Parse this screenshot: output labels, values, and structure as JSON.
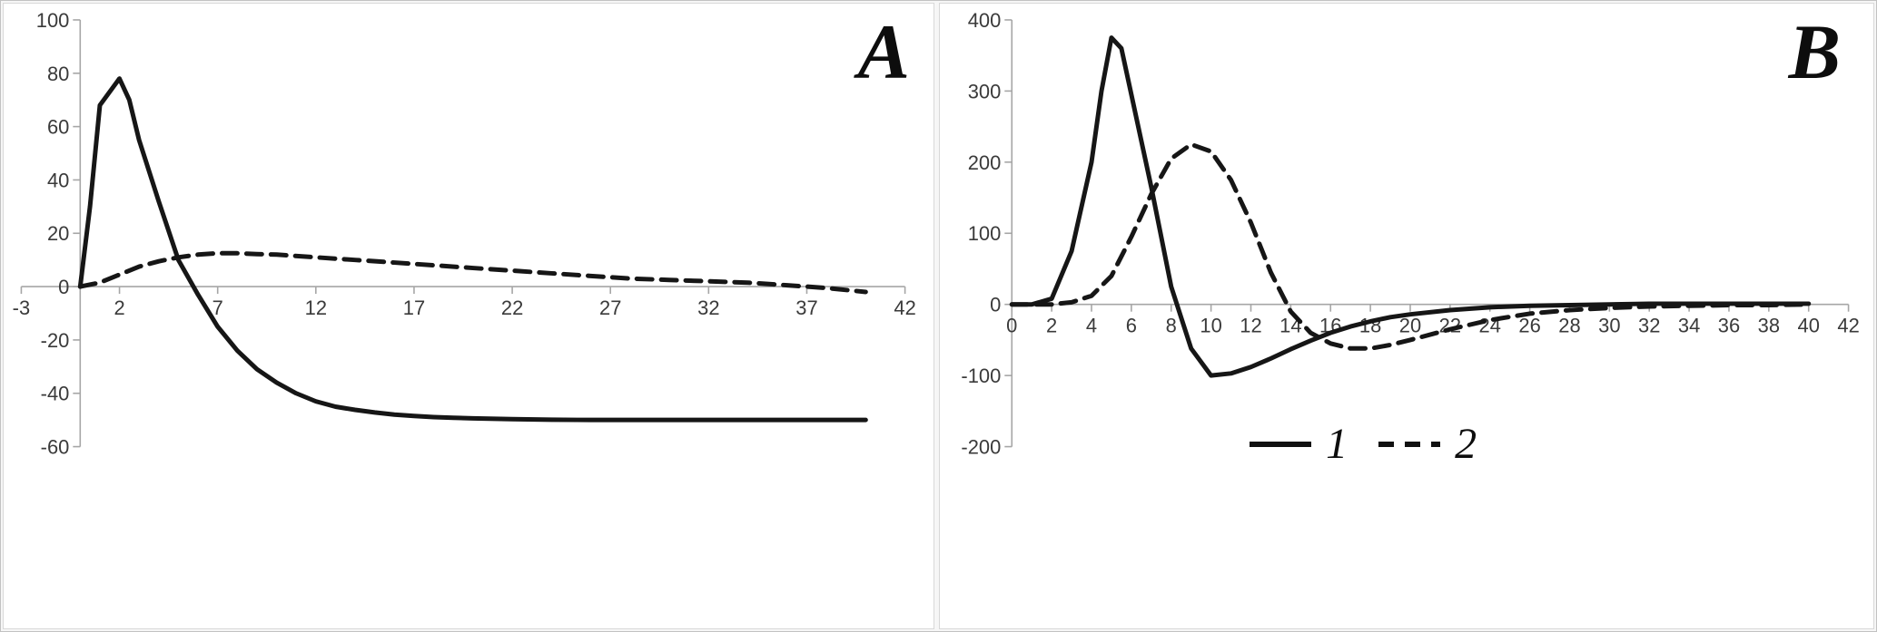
{
  "chart_data": [
    {
      "type": "line",
      "panel_label": "A",
      "title": "",
      "xlabel": "",
      "ylabel": "",
      "xlim": [
        -3,
        42
      ],
      "ylim": [
        -60,
        100
      ],
      "x_ticks": [
        -3,
        2,
        7,
        12,
        17,
        22,
        27,
        32,
        37,
        42
      ],
      "y_ticks": [
        -60,
        -40,
        -20,
        0,
        20,
        40,
        60,
        80,
        100
      ],
      "y_axis_at": 0,
      "grid": false,
      "axis_color": "#a6a6a6",
      "line_color": "#161616",
      "series": [
        {
          "name": "1",
          "style": "solid",
          "x": [
            0,
            0.5,
            1,
            2,
            2.5,
            3,
            4,
            5,
            6,
            7,
            8,
            9,
            10,
            11,
            12,
            13,
            14,
            15,
            16,
            17,
            18,
            19,
            20,
            22,
            24,
            26,
            28,
            30,
            32,
            34,
            36,
            38,
            40
          ],
          "y": [
            0,
            30,
            68,
            78,
            70,
            55,
            32,
            10,
            -3,
            -15,
            -24,
            -31,
            -36,
            -40,
            -43,
            -45,
            -46.2,
            -47.2,
            -48,
            -48.5,
            -48.9,
            -49.2,
            -49.4,
            -49.7,
            -49.9,
            -50,
            -50,
            -50,
            -50,
            -50,
            -50,
            -50,
            -50
          ]
        },
        {
          "name": "2",
          "style": "dashed",
          "x": [
            0,
            1,
            2,
            3,
            4,
            5,
            6,
            7,
            8,
            9,
            10,
            12,
            14,
            16,
            18,
            20,
            22,
            24,
            26,
            28,
            30,
            32,
            34,
            36,
            38,
            40
          ],
          "y": [
            0,
            1.5,
            4.5,
            7.5,
            9.5,
            11,
            12,
            12.5,
            12.5,
            12.2,
            12,
            11,
            10,
            9,
            8,
            7,
            6,
            5,
            4,
            3,
            2.5,
            2,
            1.5,
            0.5,
            -0.5,
            -2
          ]
        }
      ]
    },
    {
      "type": "line",
      "panel_label": "B",
      "title": "",
      "xlabel": "",
      "ylabel": "",
      "xlim": [
        0,
        42
      ],
      "ylim": [
        -200,
        400
      ],
      "x_ticks": [
        0,
        2,
        4,
        6,
        8,
        10,
        12,
        14,
        16,
        18,
        20,
        22,
        24,
        26,
        28,
        30,
        32,
        34,
        36,
        38,
        40,
        42
      ],
      "y_ticks": [
        -200,
        -100,
        0,
        100,
        200,
        300,
        400
      ],
      "y_axis_at": 0,
      "grid": false,
      "axis_color": "#a6a6a6",
      "line_color": "#161616",
      "legend": {
        "position": "bottom",
        "entries": [
          {
            "label": "1",
            "style": "solid"
          },
          {
            "label": "2",
            "style": "dashed"
          }
        ]
      },
      "series": [
        {
          "name": "1",
          "style": "solid",
          "x": [
            0,
            1,
            2,
            3,
            4,
            4.5,
            5,
            5.5,
            6,
            7,
            8,
            9,
            10,
            11,
            12,
            13,
            14,
            15,
            16,
            17,
            18,
            19,
            20,
            22,
            24,
            26,
            28,
            30,
            32,
            34,
            36,
            38,
            40
          ],
          "y": [
            0,
            0,
            8,
            75,
            200,
            300,
            375,
            360,
            295,
            165,
            25,
            -62,
            -100,
            -97,
            -88,
            -76,
            -63,
            -51,
            -40,
            -31,
            -24,
            -18,
            -14,
            -8,
            -4,
            -2,
            -1,
            0,
            1,
            1,
            1,
            1,
            1
          ]
        },
        {
          "name": "2",
          "style": "dashed",
          "x": [
            0,
            1,
            2,
            3,
            4,
            5,
            6,
            7,
            8,
            9,
            10,
            11,
            12,
            13,
            14,
            15,
            16,
            17,
            18,
            19,
            20,
            22,
            24,
            26,
            28,
            30,
            32,
            34,
            36,
            38,
            40
          ],
          "y": [
            0,
            0,
            0,
            3,
            12,
            40,
            95,
            155,
            205,
            225,
            215,
            175,
            115,
            45,
            -10,
            -40,
            -55,
            -62,
            -62,
            -57,
            -50,
            -35,
            -22,
            -13,
            -8,
            -5,
            -3,
            -2,
            -1,
            -1,
            0
          ]
        }
      ]
    }
  ]
}
